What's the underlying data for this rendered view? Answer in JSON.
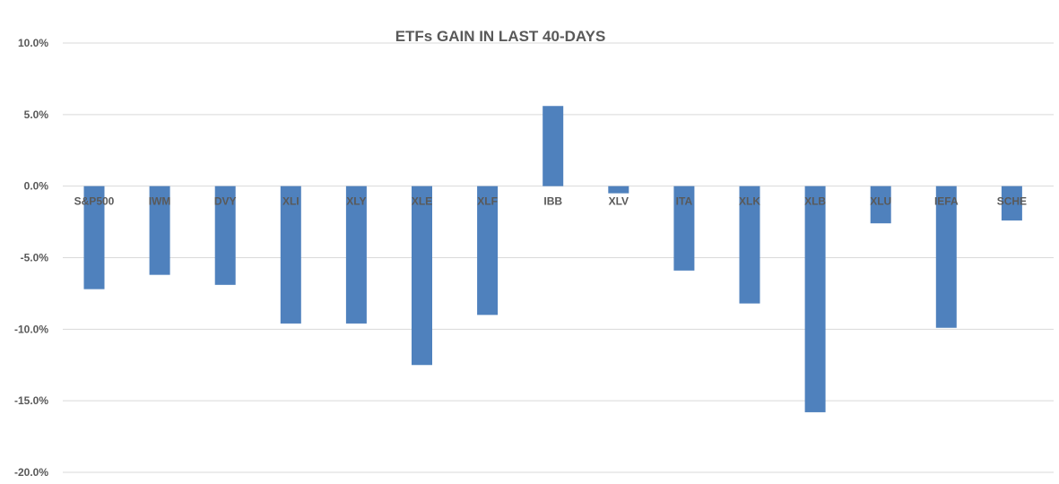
{
  "chart_data": {
    "type": "bar",
    "title": "ETFs GAIN IN LAST 40-DAYS",
    "xlabel": "",
    "ylabel": "",
    "categories": [
      "S&P500",
      "IWM",
      "DVY",
      "XLI",
      "XLY",
      "XLE",
      "XLF",
      "IBB",
      "XLV",
      "ITA",
      "XLK",
      "XLB",
      "XLU",
      "IEFA",
      "SCHE"
    ],
    "values": [
      -7.2,
      -6.2,
      -6.9,
      -9.6,
      -9.6,
      -12.5,
      -9.0,
      5.6,
      -0.5,
      -5.9,
      -8.2,
      -15.8,
      -2.6,
      -9.9,
      -2.4
    ],
    "ylim": [
      -20,
      10
    ],
    "yticks": [
      {
        "value": 10,
        "label": "10.0%"
      },
      {
        "value": 5,
        "label": "5.0%"
      },
      {
        "value": 0,
        "label": "0.0%"
      },
      {
        "value": -5,
        "label": "-5.0%"
      },
      {
        "value": -10,
        "label": "-10.0%"
      },
      {
        "value": -15,
        "label": "-15.0%"
      },
      {
        "value": -20,
        "label": "-20.0%"
      }
    ],
    "grid": true,
    "legend": "none",
    "bar_color": "#4f81bd"
  }
}
